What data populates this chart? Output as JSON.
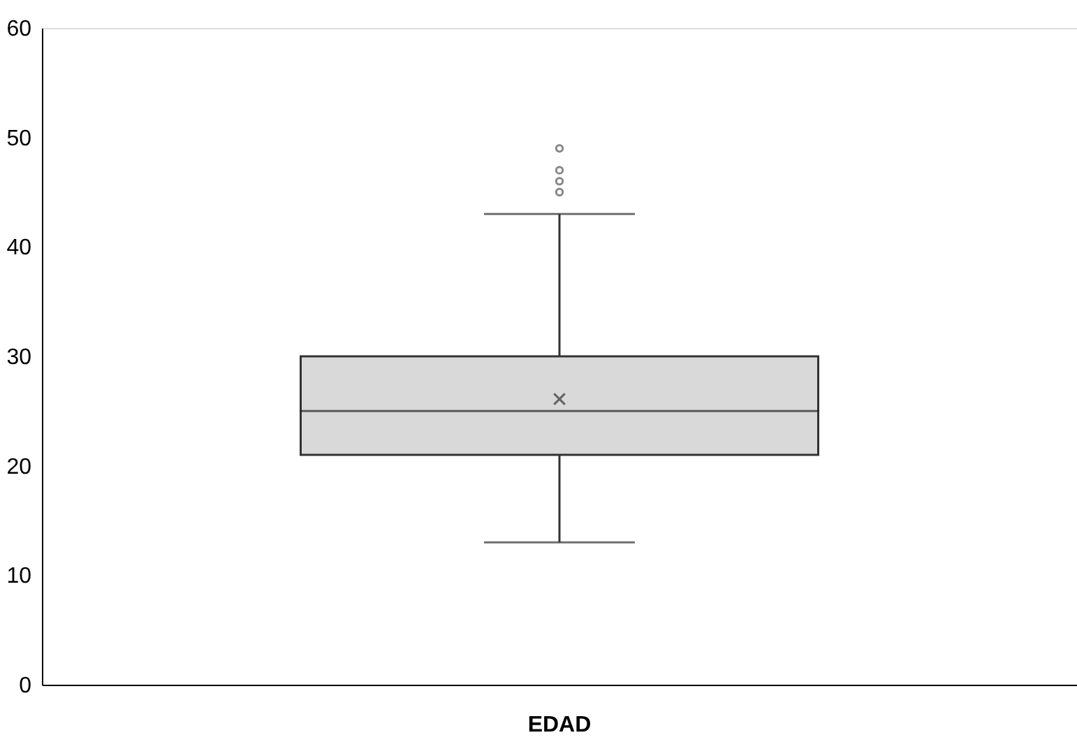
{
  "chart_data": {
    "type": "box",
    "categories": [
      "EDAD"
    ],
    "boxes": [
      {
        "low": 13,
        "q1": 21,
        "median": 25,
        "q3": 30,
        "high": 43,
        "mean": 26.1,
        "outliers": [
          45,
          46,
          47,
          49
        ]
      }
    ],
    "color": "#d9d9d9",
    "ylim": [
      0,
      60
    ],
    "yticks": [
      0,
      10,
      20,
      30,
      40,
      50,
      60
    ],
    "grid": false
  }
}
